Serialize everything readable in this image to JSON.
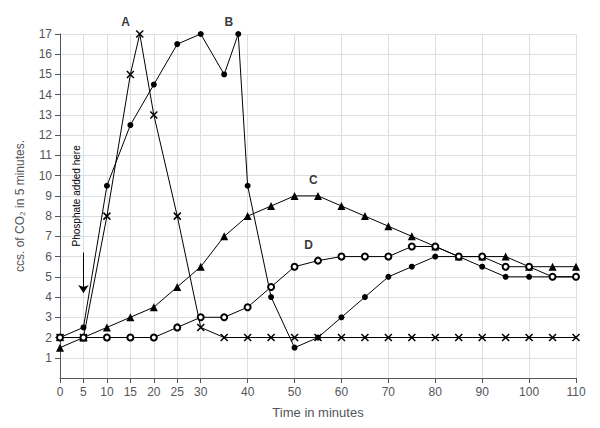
{
  "chart_data": {
    "type": "line",
    "xlabel": "Time in minutes",
    "ylabel": "ccs. of CO₂ in 5 minutes.",
    "xlim": [
      0,
      110
    ],
    "ylim": [
      0,
      17
    ],
    "xticks": [
      0,
      5,
      10,
      15,
      20,
      25,
      30,
      40,
      50,
      60,
      70,
      80,
      90,
      100,
      110
    ],
    "yticks": [
      1,
      2,
      3,
      4,
      5,
      6,
      7,
      8,
      9,
      10,
      11,
      12,
      13,
      14,
      15,
      16,
      17
    ],
    "grid": true,
    "series": [
      {
        "name": "A",
        "color": "#000000",
        "marker": "x",
        "x": [
          0,
          5,
          10,
          15,
          17,
          20,
          25,
          30,
          35,
          40,
          45,
          50,
          55,
          60,
          65,
          70,
          75,
          80,
          85,
          90,
          95,
          100,
          105,
          110
        ],
        "values": [
          2.0,
          2.0,
          8.0,
          15.0,
          17.0,
          13.0,
          8.0,
          2.5,
          2.0,
          2.0,
          2.0,
          2.0,
          2.0,
          2.0,
          2.0,
          2.0,
          2.0,
          2.0,
          2.0,
          2.0,
          2.0,
          2.0,
          2.0,
          2.0
        ]
      },
      {
        "name": "B",
        "color": "#000000",
        "marker": "circle",
        "x": [
          0,
          5,
          10,
          15,
          20,
          25,
          30,
          35,
          38,
          40,
          45,
          50,
          55,
          60,
          65,
          70,
          75,
          80,
          85,
          90,
          95,
          100,
          105,
          110
        ],
        "values": [
          2.0,
          2.5,
          9.5,
          12.5,
          14.5,
          16.5,
          17.0,
          15.0,
          17.0,
          9.5,
          4.0,
          1.5,
          2.0,
          3.0,
          4.0,
          5.0,
          5.5,
          6.0,
          6.0,
          5.5,
          5.0,
          5.0,
          5.0,
          5.0
        ]
      },
      {
        "name": "C",
        "color": "#000000",
        "marker": "triangle",
        "x": [
          0,
          5,
          10,
          15,
          20,
          25,
          30,
          35,
          40,
          45,
          50,
          55,
          60,
          65,
          70,
          75,
          80,
          85,
          90,
          95,
          100,
          105,
          110
        ],
        "values": [
          1.5,
          2.0,
          2.5,
          3.0,
          3.5,
          4.5,
          5.5,
          7.0,
          8.0,
          8.5,
          9.0,
          9.0,
          8.5,
          8.0,
          7.5,
          7.0,
          6.5,
          6.0,
          6.0,
          6.0,
          5.5,
          5.5,
          5.5
        ]
      },
      {
        "name": "D",
        "color": "#000000",
        "marker": "open_circle",
        "x": [
          0,
          5,
          10,
          15,
          20,
          25,
          30,
          35,
          40,
          45,
          50,
          55,
          60,
          65,
          70,
          75,
          80,
          85,
          90,
          95,
          100,
          105,
          110
        ],
        "values": [
          2.0,
          2.0,
          2.0,
          2.0,
          2.0,
          2.5,
          3.0,
          3.0,
          3.5,
          4.5,
          5.5,
          5.8,
          6.0,
          6.0,
          6.0,
          6.5,
          6.5,
          6.0,
          6.0,
          5.5,
          5.5,
          5.0,
          5.0
        ]
      }
    ],
    "annotations": [
      {
        "text": "A",
        "x": 14,
        "y": 17.3
      },
      {
        "text": "B",
        "x": 36,
        "y": 17.3
      },
      {
        "text": "C",
        "x": 54,
        "y": 9.5
      },
      {
        "text": "D",
        "x": 53,
        "y": 6.3
      },
      {
        "text": "Phosphate added here",
        "x": 3.5,
        "y": 6.5,
        "rotated": true
      }
    ],
    "arrows": [
      {
        "x": 5,
        "y_from": 6.2,
        "y_to": 4.2
      }
    ]
  }
}
